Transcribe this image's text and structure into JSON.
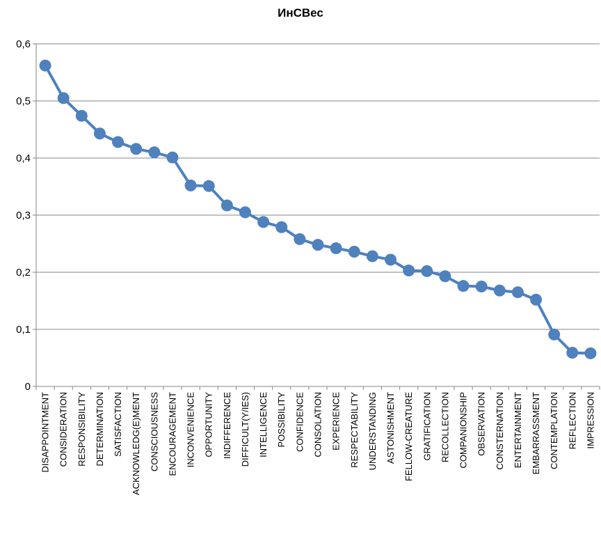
{
  "chart_data": {
    "type": "line",
    "title": "ИнСВес",
    "xlabel": "",
    "ylabel": "",
    "ylim": [
      0,
      0.6
    ],
    "y_ticks": [
      "0",
      "0,1",
      "0,2",
      "0,3",
      "0,4",
      "0,5",
      "0,6"
    ],
    "grid": true,
    "legend": "none",
    "categories": [
      "DISAPPOINTMENT",
      "CONSIDERATION",
      "RESPONSIBILITY",
      "DETERMINATION",
      "SATISFACTION",
      "ACKNOWLEDG(E)MENT",
      "CONSCIOUSNESS",
      "ENCOURAGEMENT",
      "INCONVENIENCE",
      "OPPORTUNITY",
      "INDIFFERENCE",
      "DIFFICULT(Y/IES)",
      "INTELLIGENCE",
      "POSSIBILITY",
      "CONFIDENCE",
      "CONSOLATION",
      "EXPERIENCE",
      "RESPECTABILITY",
      "UNDERSTANDING",
      "ASTONISHMENT",
      "FELLOW-CREATURE",
      "GRATIFICATION",
      "RECOLLECTION",
      "COMPANIONSHIP",
      "OBSERVATION",
      "CONSTERNATION",
      "ENTERTAINMENT",
      "EMBARRASSMENT",
      "CONTEMPLATION",
      "REFLECTION",
      "IMPRESSION"
    ],
    "series": [
      {
        "values": [
          0.562,
          0.505,
          0.474,
          0.443,
          0.428,
          0.416,
          0.41,
          0.401,
          0.352,
          0.351,
          0.317,
          0.305,
          0.288,
          0.279,
          0.258,
          0.248,
          0.242,
          0.236,
          0.228,
          0.222,
          0.203,
          0.202,
          0.193,
          0.176,
          0.175,
          0.168,
          0.165,
          0.152,
          0.091,
          0.059,
          0.058
        ],
        "color": "#4F81BD"
      }
    ],
    "colors": {
      "line": "#4F81BD",
      "grid": "#868686",
      "axis": "#868686"
    }
  }
}
